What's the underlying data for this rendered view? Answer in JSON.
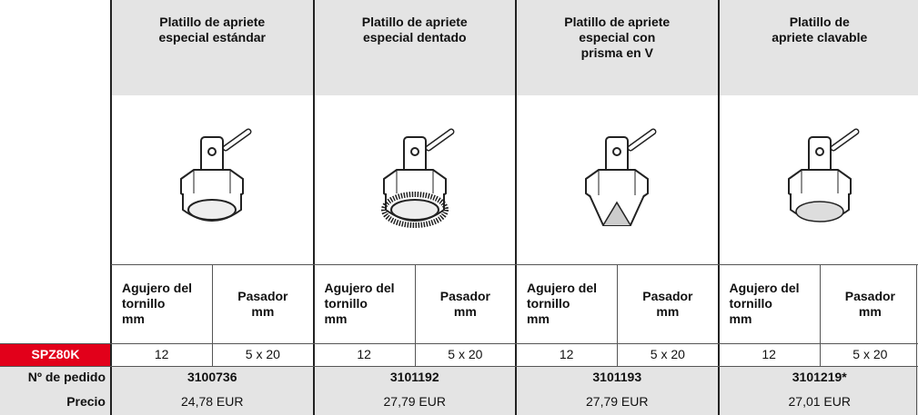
{
  "table": {
    "model": "SPZ80K",
    "order_label": "Nº de pedido",
    "price_label": "Precio",
    "columns": [
      {
        "title": "Platillo de apriete\nespecial estándar",
        "subheaders": [
          "Agujero del\ntornillo\nmm",
          "Pasador\nmm"
        ],
        "values": [
          "12",
          "5 x 20"
        ],
        "order_number": "3100736",
        "price": "24,78 EUR"
      },
      {
        "title": "Platillo de apriete\nespecial dentado",
        "subheaders": [
          "Agujero del\ntornillo\nmm",
          "Pasador\nmm"
        ],
        "values": [
          "12",
          "5 x 20"
        ],
        "order_number": "3101192",
        "price": "27,79 EUR"
      },
      {
        "title": "Platillo de apriete\nespecial con\nprisma en V",
        "subheaders": [
          "Agujero del\ntornillo\nmm",
          "Pasador\nmm"
        ],
        "values": [
          "12",
          "5 x 20"
        ],
        "order_number": "3101193",
        "price": "27,79 EUR"
      },
      {
        "title": "Platillo de\napriete clavable",
        "subheaders": [
          "Agujero del\ntornillo\nmm",
          "Pasador\nmm"
        ],
        "values": [
          "12",
          "5 x 20"
        ],
        "order_number": "3101219*",
        "price": "27,01 EUR"
      }
    ]
  }
}
